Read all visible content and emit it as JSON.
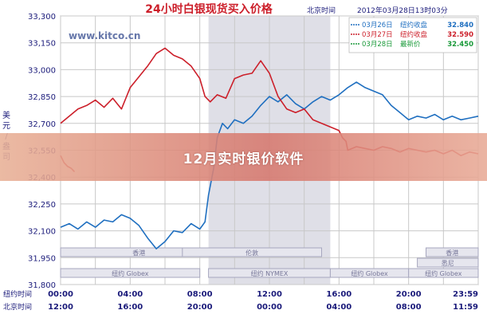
{
  "chart_data": {
    "type": "line",
    "title": "24小时白银现货买入价格",
    "timezone_label": "北京时间",
    "timestamp": "2012年03月28日13时03分",
    "watermark": "www.kitco.cn",
    "ylabel": "美元/盎司",
    "ylim": [
      31.8,
      33.3
    ],
    "yticks": [
      "33,300",
      "33,150",
      "33,000",
      "32,850",
      "32,700",
      "32,550",
      "32,400",
      "32,250",
      "32,100",
      "31,950",
      "31,800"
    ],
    "x_start_hour": 12,
    "x_end_hour": 36,
    "row1_label": "纽约时间",
    "row1_ticks": [
      "00:00",
      "04:00",
      "08:00",
      "12:00",
      "16:00",
      "20:00",
      "23:59"
    ],
    "row2_label": "北京时间",
    "row2_ticks": [
      "12:00",
      "16:00",
      "20:00",
      "00:00",
      "04:00",
      "08:00",
      "11:59"
    ],
    "sessions": [
      {
        "label": "香港",
        "from": 12,
        "to": 21
      },
      {
        "label": "伦敦",
        "from": 19,
        "to": 27
      },
      {
        "label": "纽约 Globex",
        "from": 12,
        "to": 20
      },
      {
        "label": "纽约 NYMEX",
        "from": 20.5,
        "to": 27.5
      },
      {
        "label": "纽约 Globex",
        "from": 27.5,
        "to": 32
      },
      {
        "label": "香港",
        "from": 33,
        "to": 36
      },
      {
        "label": "悉尼",
        "from": 32.5,
        "to": 36
      },
      {
        "label": "纽约 Globex",
        "from": 32,
        "to": 36
      }
    ],
    "shade_from": 20.5,
    "shade_to": 27.5,
    "colors": {
      "march26": "#1f6fc0",
      "march27": "#cc1f2a",
      "march28": "#1a9a3a",
      "title": "#cc1f2a",
      "axis": "#1a1a7a"
    },
    "series": [
      {
        "name": "03月26日",
        "legend_value_label": "纽约收盘",
        "legend_value": "32.840",
        "color": "#1f6fc0",
        "points": [
          [
            12.0,
            32.12
          ],
          [
            12.5,
            32.14
          ],
          [
            13.0,
            32.11
          ],
          [
            13.5,
            32.15
          ],
          [
            14.0,
            32.12
          ],
          [
            14.5,
            32.16
          ],
          [
            15.0,
            32.15
          ],
          [
            15.5,
            32.19
          ],
          [
            16.0,
            32.17
          ],
          [
            16.5,
            32.13
          ],
          [
            17.0,
            32.06
          ],
          [
            17.5,
            32.0
          ],
          [
            18.0,
            32.04
          ],
          [
            18.5,
            32.1
          ],
          [
            19.0,
            32.09
          ],
          [
            19.5,
            32.14
          ],
          [
            20.0,
            32.11
          ],
          [
            20.3,
            32.15
          ],
          [
            20.5,
            32.3
          ],
          [
            20.8,
            32.45
          ],
          [
            21.0,
            32.62
          ],
          [
            21.3,
            32.7
          ],
          [
            21.6,
            32.67
          ],
          [
            22.0,
            32.72
          ],
          [
            22.5,
            32.7
          ],
          [
            23.0,
            32.74
          ],
          [
            23.5,
            32.8
          ],
          [
            24.0,
            32.85
          ],
          [
            24.5,
            32.82
          ],
          [
            25.0,
            32.86
          ],
          [
            25.5,
            32.81
          ],
          [
            26.0,
            32.78
          ],
          [
            26.5,
            32.82
          ],
          [
            27.0,
            32.85
          ],
          [
            27.5,
            32.83
          ],
          [
            28.0,
            32.86
          ],
          [
            28.5,
            32.9
          ],
          [
            29.0,
            32.93
          ],
          [
            29.5,
            32.9
          ],
          [
            30.0,
            32.88
          ],
          [
            30.5,
            32.86
          ],
          [
            31.0,
            32.8
          ],
          [
            31.5,
            32.76
          ],
          [
            32.0,
            32.72
          ],
          [
            32.5,
            32.74
          ],
          [
            33.0,
            32.73
          ],
          [
            33.5,
            32.75
          ],
          [
            34.0,
            32.72
          ],
          [
            34.5,
            32.74
          ],
          [
            35.0,
            32.72
          ],
          [
            35.5,
            32.73
          ],
          [
            36.0,
            32.74
          ]
        ]
      },
      {
        "name": "03月27日",
        "legend_value_label": "纽约收盘",
        "legend_value": "32.590",
        "color": "#cc1f2a",
        "points": [
          [
            12.0,
            32.7
          ],
          [
            12.5,
            32.74
          ],
          [
            13.0,
            32.78
          ],
          [
            13.5,
            32.8
          ],
          [
            14.0,
            32.83
          ],
          [
            14.5,
            32.79
          ],
          [
            15.0,
            32.84
          ],
          [
            15.5,
            32.78
          ],
          [
            16.0,
            32.9
          ],
          [
            16.5,
            32.96
          ],
          [
            17.0,
            33.02
          ],
          [
            17.5,
            33.09
          ],
          [
            18.0,
            33.12
          ],
          [
            18.5,
            33.08
          ],
          [
            19.0,
            33.06
          ],
          [
            19.5,
            33.02
          ],
          [
            20.0,
            32.95
          ],
          [
            20.3,
            32.85
          ],
          [
            20.6,
            32.82
          ],
          [
            21.0,
            32.86
          ],
          [
            21.5,
            32.84
          ],
          [
            22.0,
            32.95
          ],
          [
            22.5,
            32.97
          ],
          [
            23.0,
            32.98
          ],
          [
            23.5,
            33.05
          ],
          [
            24.0,
            32.98
          ],
          [
            24.5,
            32.85
          ],
          [
            25.0,
            32.78
          ],
          [
            25.5,
            32.76
          ],
          [
            26.0,
            32.78
          ],
          [
            26.5,
            32.72
          ],
          [
            27.0,
            32.7
          ],
          [
            27.5,
            32.68
          ],
          [
            28.0,
            32.66
          ],
          [
            28.2,
            32.62
          ],
          [
            28.4,
            32.6
          ],
          [
            28.5,
            32.55
          ],
          [
            29.0,
            32.57
          ],
          [
            29.5,
            32.56
          ],
          [
            30.0,
            32.55
          ],
          [
            30.5,
            32.57
          ],
          [
            31.0,
            32.56
          ],
          [
            31.5,
            32.54
          ],
          [
            32.0,
            32.56
          ],
          [
            32.5,
            32.55
          ],
          [
            33.0,
            32.54
          ],
          [
            33.5,
            32.55
          ],
          [
            34.0,
            32.53
          ],
          [
            34.5,
            32.55
          ],
          [
            35.0,
            32.52
          ],
          [
            35.5,
            32.54
          ],
          [
            36.0,
            32.53
          ]
        ]
      },
      {
        "name": "03月28日",
        "legend_value_label": "最新价",
        "legend_value": "32.450",
        "color": "#1a9a3a",
        "points": []
      }
    ],
    "prior_close_segment": [
      [
        12.0,
        32.52
      ],
      [
        12.2,
        32.48
      ],
      [
        12.4,
        32.46
      ],
      [
        12.6,
        32.45
      ],
      [
        12.8,
        32.43
      ]
    ]
  }
}
